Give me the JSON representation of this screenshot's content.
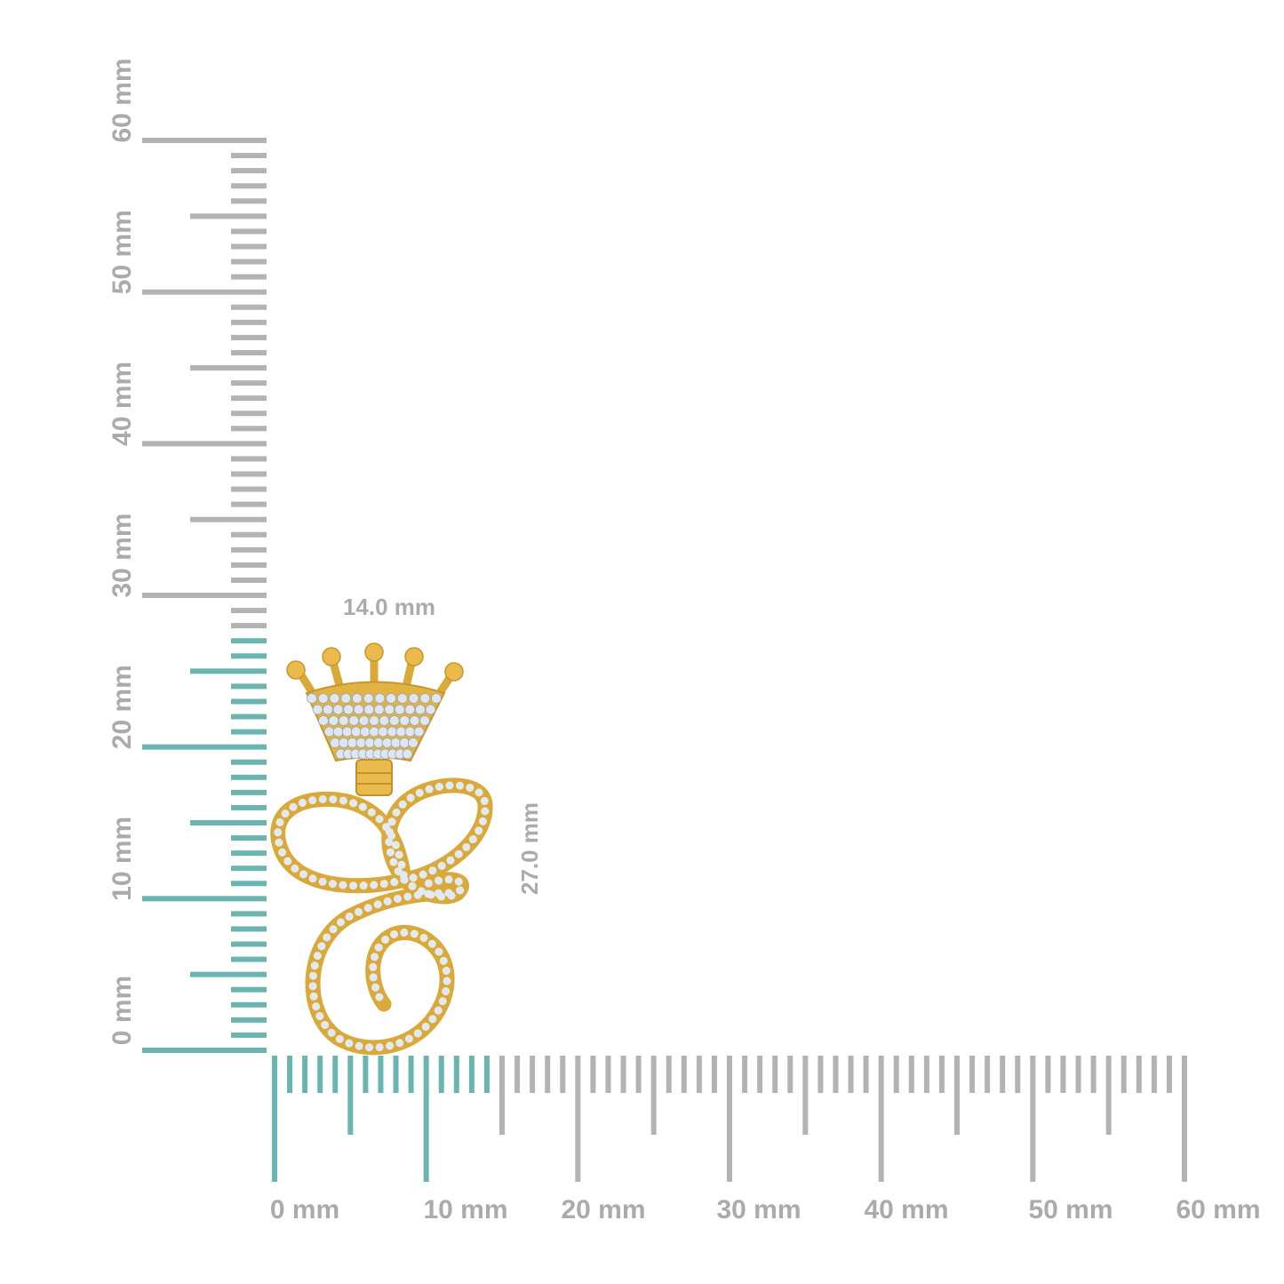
{
  "units": "mm",
  "product": {
    "width_mm": 14.0,
    "height_mm": 27.0,
    "width_label": "14.0 mm",
    "height_label": "27.0 mm"
  },
  "horizontal_ruler": {
    "labels": [
      "0 mm",
      "10 mm",
      "20 mm",
      "30 mm",
      "40 mm",
      "50 mm",
      "60 mm"
    ],
    "max_mm": 60
  },
  "vertical_ruler": {
    "labels": [
      "0 mm",
      "10 mm",
      "20 mm",
      "30 mm",
      "40 mm",
      "50 mm",
      "60 mm"
    ],
    "max_mm": 60
  },
  "colors": {
    "highlight": "#6bb5b0",
    "ruler": "#b3b3b3",
    "label": "#ababab",
    "gold": "#e3b545",
    "diamond": "#e4ebf2"
  }
}
